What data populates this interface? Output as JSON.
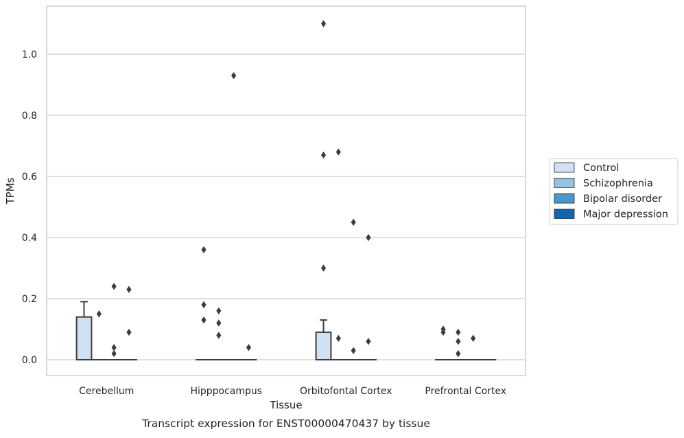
{
  "chart_data": {
    "type": "box",
    "caption": "Transcript expression for ENST00000470437 by tissue",
    "xlabel": "Tissue",
    "ylabel": "TPMs",
    "ylim": [
      -0.055,
      1.16
    ],
    "yticks": [
      0.0,
      0.2,
      0.4,
      0.6,
      0.8,
      1.0
    ],
    "ytick_labels": [
      "0.0",
      "0.2",
      "0.4",
      "0.6",
      "0.8",
      "1.0"
    ],
    "grid": "horizontal",
    "legend_position": "right",
    "categories": [
      "Cerebellum",
      "Hipppocampus",
      "Orbitofontal Cortex",
      "Prefrontal Cortex"
    ],
    "series": [
      {
        "name": "Control",
        "color": "#d0e1f2"
      },
      {
        "name": "Schizophrenia",
        "color": "#94c4df"
      },
      {
        "name": "Bipolar disorder",
        "color": "#4a98c9"
      },
      {
        "name": "Major depression",
        "color": "#1764ab"
      }
    ],
    "boxes": [
      {
        "category": "Cerebellum",
        "series": "Control",
        "q1": 0.0,
        "median": 0.0,
        "q3": 0.14,
        "whisker_low": 0.0,
        "whisker_high": 0.19,
        "outliers": []
      },
      {
        "category": "Cerebellum",
        "series": "Schizophrenia",
        "q1": 0.0,
        "median": 0.0,
        "q3": 0.0,
        "whisker_low": 0.0,
        "whisker_high": 0.0,
        "outliers": [
          0.15
        ]
      },
      {
        "category": "Cerebellum",
        "series": "Bipolar disorder",
        "q1": 0.0,
        "median": 0.0,
        "q3": 0.0,
        "whisker_low": 0.0,
        "whisker_high": 0.0,
        "outliers": [
          0.24,
          0.04,
          0.02
        ]
      },
      {
        "category": "Cerebellum",
        "series": "Major depression",
        "q1": 0.0,
        "median": 0.0,
        "q3": 0.0,
        "whisker_low": 0.0,
        "whisker_high": 0.0,
        "outliers": [
          0.23,
          0.09
        ]
      },
      {
        "category": "Hipppocampus",
        "series": "Control",
        "q1": 0.0,
        "median": 0.0,
        "q3": 0.0,
        "whisker_low": 0.0,
        "whisker_high": 0.0,
        "outliers": [
          0.36,
          0.18,
          0.13
        ]
      },
      {
        "category": "Hipppocampus",
        "series": "Schizophrenia",
        "q1": 0.0,
        "median": 0.0,
        "q3": 0.0,
        "whisker_low": 0.0,
        "whisker_high": 0.0,
        "outliers": [
          0.16,
          0.12,
          0.08
        ]
      },
      {
        "category": "Hipppocampus",
        "series": "Bipolar disorder",
        "q1": 0.0,
        "median": 0.0,
        "q3": 0.0,
        "whisker_low": 0.0,
        "whisker_high": 0.0,
        "outliers": [
          0.93
        ]
      },
      {
        "category": "Hipppocampus",
        "series": "Major depression",
        "q1": 0.0,
        "median": 0.0,
        "q3": 0.0,
        "whisker_low": 0.0,
        "whisker_high": 0.0,
        "outliers": [
          0.04
        ]
      },
      {
        "category": "Orbitofontal Cortex",
        "series": "Control",
        "q1": 0.0,
        "median": 0.0,
        "q3": 0.09,
        "whisker_low": 0.0,
        "whisker_high": 0.13,
        "outliers": [
          1.1,
          0.67,
          0.3
        ]
      },
      {
        "category": "Orbitofontal Cortex",
        "series": "Schizophrenia",
        "q1": 0.0,
        "median": 0.0,
        "q3": 0.0,
        "whisker_low": 0.0,
        "whisker_high": 0.0,
        "outliers": [
          0.68,
          0.07
        ]
      },
      {
        "category": "Orbitofontal Cortex",
        "series": "Bipolar disorder",
        "q1": 0.0,
        "median": 0.0,
        "q3": 0.0,
        "whisker_low": 0.0,
        "whisker_high": 0.0,
        "outliers": [
          0.45,
          0.03
        ]
      },
      {
        "category": "Orbitofontal Cortex",
        "series": "Major depression",
        "q1": 0.0,
        "median": 0.0,
        "q3": 0.0,
        "whisker_low": 0.0,
        "whisker_high": 0.0,
        "outliers": [
          0.4,
          0.06
        ]
      },
      {
        "category": "Prefrontal Cortex",
        "series": "Control",
        "q1": 0.0,
        "median": 0.0,
        "q3": 0.0,
        "whisker_low": 0.0,
        "whisker_high": 0.0,
        "outliers": [
          0.1,
          0.09
        ]
      },
      {
        "category": "Prefrontal Cortex",
        "series": "Schizophrenia",
        "q1": 0.0,
        "median": 0.0,
        "q3": 0.0,
        "whisker_low": 0.0,
        "whisker_high": 0.0,
        "outliers": [
          0.09,
          0.06,
          0.02
        ]
      },
      {
        "category": "Prefrontal Cortex",
        "series": "Bipolar disorder",
        "q1": 0.0,
        "median": 0.0,
        "q3": 0.0,
        "whisker_low": 0.0,
        "whisker_high": 0.0,
        "outliers": [
          0.07
        ]
      },
      {
        "category": "Prefrontal Cortex",
        "series": "Major depression",
        "q1": 0.0,
        "median": 0.0,
        "q3": 0.0,
        "whisker_low": 0.0,
        "whisker_high": 0.0,
        "outliers": []
      }
    ]
  }
}
